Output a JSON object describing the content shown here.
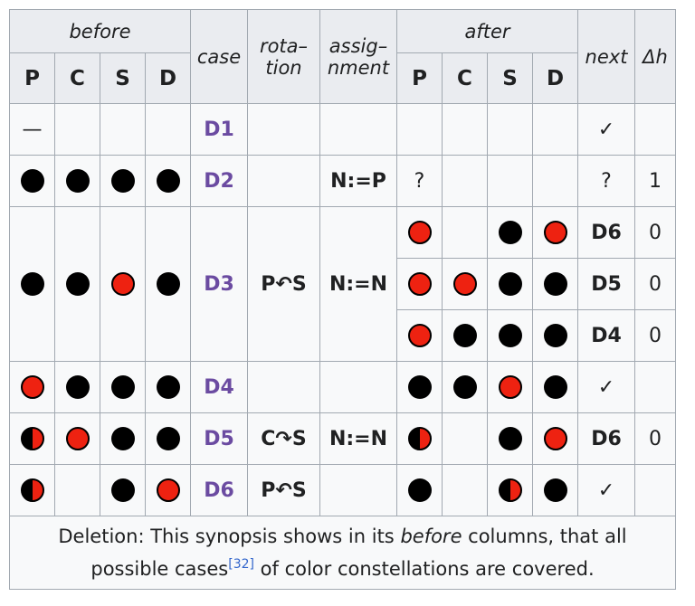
{
  "header": {
    "before": "before",
    "case": "case",
    "rotation_1": "rota–",
    "rotation_2": "tion",
    "assignment_1": "assig–",
    "assignment_2": "nment",
    "after": "after",
    "next": "next",
    "dh": "Δh",
    "before_cols": [
      "P",
      "C",
      "S",
      "D"
    ],
    "after_cols": [
      "P",
      "C",
      "S",
      "D"
    ]
  },
  "rows": [
    {
      "before": [
        "—",
        "",
        "",
        ""
      ],
      "case": "D1",
      "rotation": "",
      "assignment": "",
      "after": [
        "",
        "",
        "",
        ""
      ],
      "next": "✓",
      "dh": ""
    },
    {
      "before": [
        "black",
        "black",
        "black",
        "black"
      ],
      "case": "D2",
      "rotation": "",
      "assignment": "N:=P",
      "after": [
        "?",
        "",
        "",
        ""
      ],
      "next": "?",
      "dh": "1"
    },
    {
      "before": [
        "black",
        "black",
        "red",
        "black"
      ],
      "case": "D3",
      "rotation": "P↶S",
      "assignment": "N:=N",
      "after_rows": [
        {
          "after": [
            "red",
            "",
            "black",
            "red"
          ],
          "next": "D6",
          "dh": "0"
        },
        {
          "after": [
            "red",
            "red",
            "black",
            "black"
          ],
          "next": "D5",
          "dh": "0"
        },
        {
          "after": [
            "red",
            "black",
            "black",
            "black"
          ],
          "next": "D4",
          "dh": "0"
        }
      ]
    },
    {
      "before": [
        "red",
        "black",
        "black",
        "black"
      ],
      "case": "D4",
      "rotation": "",
      "assignment": "",
      "after": [
        "black",
        "black",
        "red",
        "black"
      ],
      "next": "✓",
      "dh": ""
    },
    {
      "before": [
        "half",
        "red",
        "black",
        "black"
      ],
      "case": "D5",
      "rotation": "C↷S",
      "assignment": "N:=N",
      "after": [
        "half",
        "",
        "black",
        "red"
      ],
      "next": "D6",
      "dh": "0"
    },
    {
      "before": [
        "half",
        "",
        "black",
        "red"
      ],
      "case": "D6",
      "rotation": "P↶S",
      "assignment": "",
      "after": [
        "black",
        "",
        "half",
        "black"
      ],
      "next": "✓",
      "dh": ""
    }
  ],
  "caption": {
    "line1_a": "Deletion: This synopsis shows in its ",
    "line1_em": "before",
    "line1_b": " columns, that all",
    "line2_a": "possible cases",
    "line2_ref": "[32]",
    "line2_b": " of color constellations are covered."
  },
  "colors": {
    "red": "#ee2211",
    "black": "#000000",
    "link": "#6b4ba1",
    "border": "#a2a9b1",
    "header_bg": "#eaecf0"
  }
}
